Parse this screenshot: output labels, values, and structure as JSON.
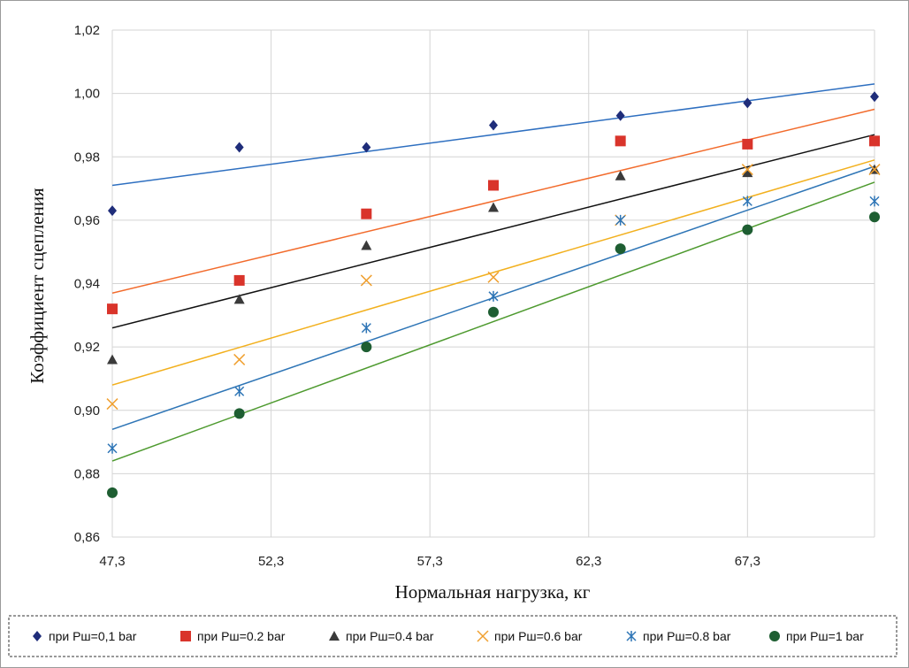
{
  "chart_data": {
    "type": "scatter",
    "title": "",
    "xlabel": "Нормальная нагрузка, кг",
    "ylabel": "Коэффициент сцепления",
    "xlim": [
      47.3,
      71.3
    ],
    "ylim": [
      0.86,
      1.02
    ],
    "x_ticks": [
      "47,3",
      "52,3",
      "57,3",
      "62,3",
      "67,3"
    ],
    "y_ticks": [
      "0,86",
      "0,88",
      "0,90",
      "0,92",
      "0,94",
      "0,96",
      "0,98",
      "1,00",
      "1,02"
    ],
    "grid": true,
    "legend_position": "bottom",
    "x": [
      47.3,
      51.3,
      55.3,
      59.3,
      63.3,
      67.3,
      71.3
    ],
    "series": [
      {
        "name": "при Pш=0,1 bar",
        "marker": "diamond",
        "color": "#1F2D7A",
        "trend_color": "#2E6FC0",
        "values": [
          0.963,
          0.983,
          0.983,
          0.99,
          0.993,
          0.997,
          0.999
        ],
        "trend": [
          0.971,
          1.003
        ]
      },
      {
        "name": "при Pш=0.2 bar",
        "marker": "square",
        "color": "#D9342B",
        "trend_color": "#F26B2C",
        "values": [
          0.932,
          0.941,
          0.962,
          0.971,
          0.985,
          0.984,
          0.985
        ],
        "trend": [
          0.937,
          0.995
        ]
      },
      {
        "name": "при Pш=0.4 bar",
        "marker": "triangle",
        "color": "#3A3A3A",
        "trend_color": "#111111",
        "values": [
          0.916,
          0.935,
          0.952,
          0.964,
          0.974,
          0.975,
          0.976
        ],
        "trend": [
          0.926,
          0.987
        ]
      },
      {
        "name": "при Pш=0.6 bar",
        "marker": "x",
        "color": "#F0A030",
        "trend_color": "#F2B01E",
        "values": [
          0.902,
          0.916,
          0.941,
          0.942,
          0.96,
          0.976,
          0.976
        ],
        "trend": [
          0.908,
          0.979
        ]
      },
      {
        "name": "при Pш=0.8 bar",
        "marker": "star",
        "color": "#2E75B6",
        "trend_color": "#2E75B6",
        "values": [
          0.888,
          0.906,
          0.926,
          0.936,
          0.96,
          0.966,
          0.966
        ],
        "trend": [
          0.894,
          0.977
        ]
      },
      {
        "name": "при Pш=1 bar",
        "marker": "circle",
        "color": "#1E5E32",
        "trend_color": "#4E9A2F",
        "values": [
          0.874,
          0.899,
          0.92,
          0.931,
          0.951,
          0.957,
          0.961
        ],
        "trend": [
          0.884,
          0.972
        ]
      }
    ]
  }
}
